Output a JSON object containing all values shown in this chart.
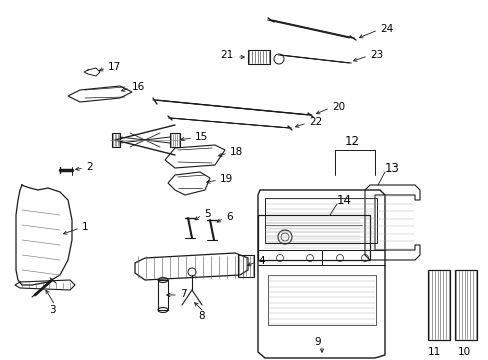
{
  "bg_color": "#ffffff",
  "line_color": "#1a1a1a",
  "fig_width": 4.89,
  "fig_height": 3.6,
  "dpi": 100,
  "annotation_fontsize": 7.5,
  "lw": 0.75
}
